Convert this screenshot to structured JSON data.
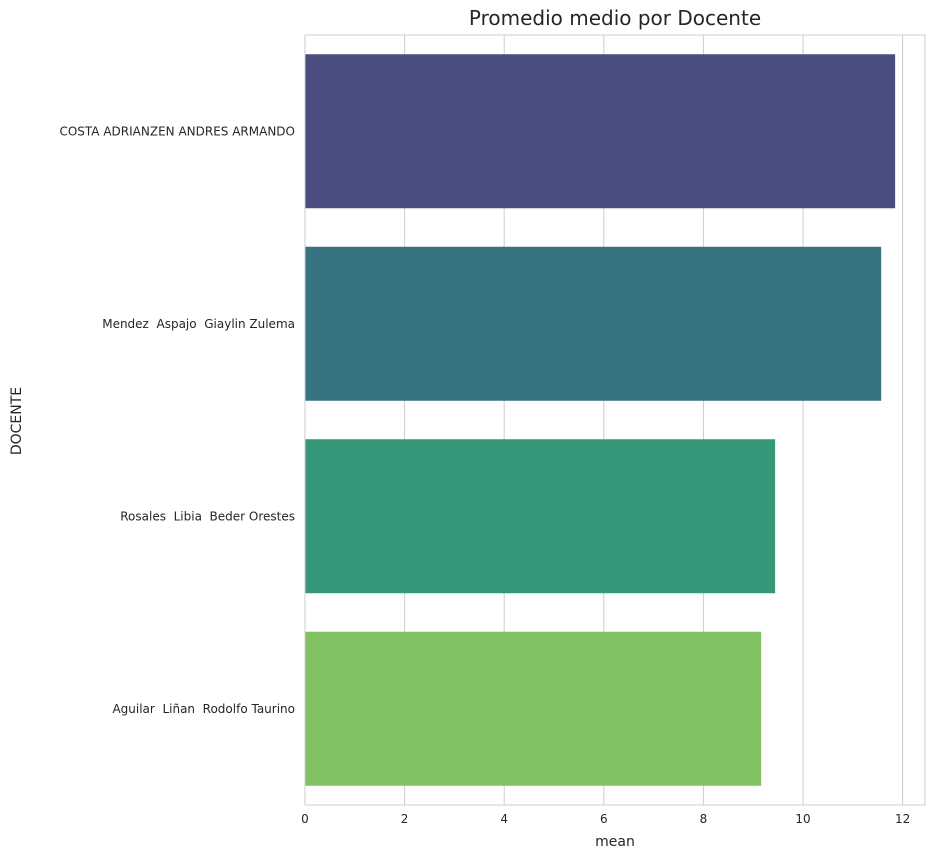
{
  "chart_data": {
    "type": "bar",
    "orientation": "horizontal",
    "title": "Promedio medio por Docente",
    "xlabel": "mean",
    "ylabel": "DOCENTE",
    "categories": [
      "COSTA ADRIANZEN ANDRES ARMANDO",
      "Mendez  Aspajo  Giaylin Zulema",
      "Rosales  Libia  Beder Orestes",
      "Aguilar  Liñan  Rodolfo Taurino"
    ],
    "values": [
      11.85,
      11.57,
      9.44,
      9.16
    ],
    "colors": [
      "#4a4d7f",
      "#36727f",
      "#34977a",
      "#80c262"
    ],
    "xlim": [
      0,
      12.45
    ],
    "xticks": [
      0,
      2,
      4,
      6,
      8,
      10,
      12
    ],
    "grid": "vertical",
    "legend": "none"
  }
}
